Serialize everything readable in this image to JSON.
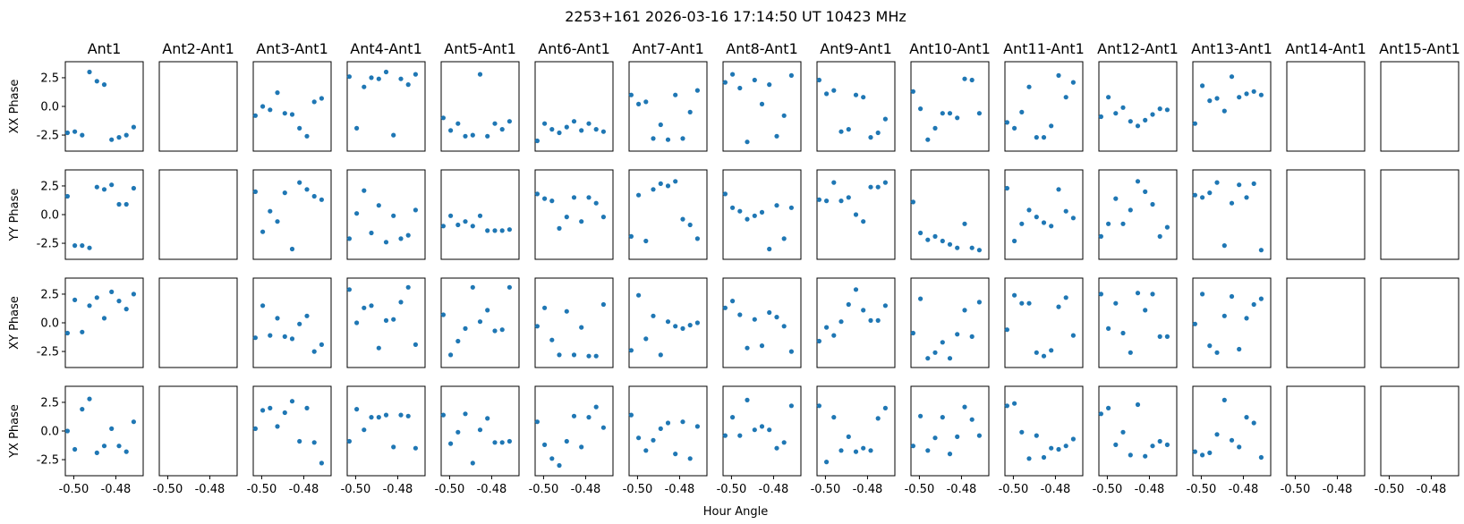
{
  "figure": {
    "title": "2253+161  2026-03-16 17:14:50 UT  10423 MHz",
    "xlabel": "Hour Angle"
  },
  "chart_data": {
    "type": "scatter",
    "title": "2253+161  2026-03-16 17:14:50 UT  10423 MHz",
    "xlabel": "Hour Angle",
    "xlim": [
      -0.504,
      -0.467
    ],
    "ylim": [
      -3.9,
      3.9
    ],
    "xticks": [
      -0.5,
      -0.48
    ],
    "xtick_labels": [
      "-0.50",
      "-0.48"
    ],
    "yticks": [
      2.5,
      0.0,
      -2.5
    ],
    "ytick_labels": [
      "2.5",
      "0.0",
      "-2.5"
    ],
    "x": [
      -0.503,
      -0.4995,
      -0.496,
      -0.4925,
      -0.489,
      -0.4855,
      -0.482,
      -0.4785,
      -0.475,
      -0.4715,
      -0.468
    ],
    "columns": [
      "Ant1",
      "Ant2-Ant1",
      "Ant3-Ant1",
      "Ant4-Ant1",
      "Ant5-Ant1",
      "Ant6-Ant1",
      "Ant7-Ant1",
      "Ant8-Ant1",
      "Ant9-Ant1",
      "Ant10-Ant1",
      "Ant11-Ant1",
      "Ant12-Ant1",
      "Ant13-Ant1",
      "Ant14-Ant1",
      "Ant15-Ant1"
    ],
    "rows": [
      "XX Phase",
      "YY Phase",
      "XY Phase",
      "YX Phase"
    ],
    "marker_color": "#1f77b4",
    "series": {
      "XX Phase": [
        [
          -2.3,
          -2.2,
          -2.5,
          3.0,
          2.2,
          1.9,
          -2.9,
          -2.7,
          -2.5,
          -1.8,
          null
        ],
        [],
        [
          -0.8,
          0.0,
          -0.3,
          1.2,
          -0.6,
          -0.7,
          -1.9,
          -2.6,
          0.4,
          0.7,
          null
        ],
        [
          2.6,
          -1.9,
          1.7,
          2.5,
          2.4,
          3.0,
          -2.5,
          2.4,
          1.9,
          2.8,
          null
        ],
        [
          -1.0,
          -2.1,
          -1.5,
          -2.6,
          -2.5,
          2.8,
          -2.6,
          -1.5,
          -2.0,
          -1.3,
          null
        ],
        [
          -3.0,
          -1.5,
          -2.0,
          -2.3,
          -1.8,
          -1.3,
          -2.1,
          -1.5,
          -2.0,
          -2.2,
          null
        ],
        [
          1.0,
          0.2,
          0.4,
          -2.8,
          -1.6,
          -2.9,
          1.0,
          -2.8,
          -0.5,
          1.4,
          null
        ],
        [
          2.1,
          2.8,
          1.6,
          -3.1,
          2.3,
          0.2,
          1.9,
          -2.6,
          -0.8,
          2.7,
          null
        ],
        [
          2.3,
          1.1,
          1.4,
          -2.2,
          -2.0,
          1.0,
          0.8,
          -2.7,
          -2.3,
          -1.1,
          null
        ],
        [
          1.3,
          -0.2,
          -2.9,
          -1.9,
          -0.6,
          -0.6,
          -1.0,
          2.4,
          2.3,
          -0.6,
          null
        ],
        [
          -1.4,
          -1.9,
          -0.5,
          1.7,
          -2.7,
          -2.7,
          -1.7,
          2.7,
          0.8,
          2.1,
          null
        ],
        [
          -0.9,
          0.8,
          -0.6,
          -0.1,
          -1.3,
          -1.7,
          -1.2,
          -0.7,
          -0.2,
          -0.3,
          null
        ],
        [
          -1.5,
          1.8,
          0.5,
          0.7,
          -0.4,
          2.6,
          0.8,
          1.1,
          1.3,
          1.0,
          null
        ],
        [],
        []
      ],
      "YY Phase": [
        [
          1.6,
          -2.7,
          -2.7,
          -2.9,
          2.4,
          2.2,
          2.6,
          0.9,
          0.9,
          2.3,
          null
        ],
        [],
        [
          2.0,
          -1.5,
          0.3,
          -0.6,
          1.9,
          -3.0,
          2.8,
          2.2,
          1.6,
          1.3,
          null
        ],
        [
          -2.1,
          0.1,
          2.1,
          -1.6,
          0.8,
          -2.4,
          -0.1,
          -2.1,
          -1.8,
          0.4,
          null
        ],
        [
          -1.0,
          -0.1,
          -0.9,
          -0.6,
          -1.0,
          -0.1,
          -1.4,
          -1.4,
          -1.4,
          -1.3,
          null
        ],
        [
          1.8,
          1.4,
          1.2,
          -1.2,
          -0.2,
          1.5,
          -0.6,
          1.5,
          1.0,
          -0.2,
          null
        ],
        [
          -1.9,
          1.7,
          -2.3,
          2.2,
          2.7,
          2.5,
          2.9,
          -0.4,
          -0.9,
          -2.1,
          null
        ],
        [
          1.8,
          0.6,
          0.3,
          -0.4,
          -0.1,
          0.2,
          -3.0,
          0.8,
          -2.1,
          0.6,
          null
        ],
        [
          1.3,
          1.2,
          2.8,
          1.2,
          1.5,
          0.0,
          -0.6,
          2.4,
          2.4,
          2.8,
          null
        ],
        [
          1.1,
          -1.6,
          -2.2,
          -1.9,
          -2.3,
          -2.6,
          -2.9,
          -0.8,
          -2.9,
          -3.1,
          null
        ],
        [
          2.3,
          -2.3,
          -0.8,
          0.4,
          -0.2,
          -0.7,
          -1.0,
          2.2,
          0.3,
          -0.3,
          null
        ],
        [
          -1.9,
          -0.8,
          1.4,
          -0.8,
          0.4,
          2.9,
          2.0,
          0.9,
          -1.9,
          -1.1,
          null
        ],
        [
          1.7,
          1.5,
          1.9,
          2.8,
          -2.7,
          1.0,
          2.6,
          1.5,
          2.7,
          -3.1,
          null
        ],
        [],
        []
      ],
      "XY Phase": [
        [
          -0.9,
          2.0,
          -0.8,
          1.5,
          2.2,
          0.4,
          2.7,
          1.9,
          1.2,
          2.5,
          null
        ],
        [],
        [
          -1.3,
          1.5,
          -1.1,
          0.4,
          -1.2,
          -1.4,
          -0.1,
          0.6,
          -2.5,
          -1.9,
          null
        ],
        [
          2.9,
          0.0,
          1.3,
          1.5,
          -2.2,
          0.2,
          0.3,
          1.8,
          3.1,
          -1.9,
          null
        ],
        [
          0.7,
          -2.8,
          -1.6,
          -0.5,
          3.1,
          0.1,
          1.1,
          -0.7,
          -0.6,
          3.1,
          null
        ],
        [
          -0.3,
          1.3,
          -1.5,
          -2.8,
          1.0,
          -2.8,
          -0.4,
          -2.9,
          -2.9,
          1.6,
          null
        ],
        [
          -2.4,
          2.4,
          -1.4,
          0.6,
          -2.8,
          0.1,
          -0.3,
          -0.5,
          -0.2,
          0.0,
          null
        ],
        [
          1.3,
          1.9,
          0.7,
          -2.2,
          0.3,
          -2.0,
          0.9,
          0.5,
          -0.3,
          -2.5,
          null
        ],
        [
          -1.6,
          -0.4,
          -1.1,
          0.1,
          1.6,
          2.9,
          1.1,
          0.2,
          0.2,
          1.5,
          null
        ],
        [
          -0.9,
          2.1,
          -3.1,
          -2.6,
          -1.7,
          -3.1,
          -1.0,
          1.1,
          -1.2,
          1.8,
          null
        ],
        [
          -0.6,
          2.4,
          1.7,
          1.7,
          -2.6,
          -2.9,
          -2.4,
          1.4,
          2.2,
          -1.1,
          null
        ],
        [
          2.5,
          -0.5,
          1.7,
          -0.9,
          -2.6,
          2.6,
          1.1,
          2.5,
          -1.2,
          -1.2,
          null
        ],
        [
          -0.1,
          2.5,
          -2.0,
          -2.6,
          0.6,
          2.3,
          -2.3,
          0.4,
          1.6,
          2.1,
          null
        ],
        [],
        []
      ],
      "YX Phase": [
        [
          0.0,
          -1.6,
          1.9,
          2.8,
          -1.9,
          -1.3,
          0.2,
          -1.3,
          -1.8,
          0.8,
          null
        ],
        [],
        [
          0.2,
          1.8,
          2.0,
          0.4,
          1.6,
          2.6,
          -0.9,
          2.0,
          -1.0,
          -2.8,
          null
        ],
        [
          -0.9,
          1.9,
          0.1,
          1.2,
          1.2,
          1.4,
          -1.4,
          1.4,
          1.3,
          -1.5,
          null
        ],
        [
          1.4,
          -1.1,
          -0.1,
          1.5,
          -2.8,
          0.1,
          1.1,
          -1.0,
          -1.0,
          -0.9,
          null
        ],
        [
          0.8,
          -1.2,
          -2.4,
          -3.0,
          -0.9,
          1.3,
          -1.4,
          1.2,
          2.1,
          0.3,
          null
        ],
        [
          1.4,
          -0.6,
          -1.7,
          -0.8,
          0.2,
          0.7,
          -2.0,
          0.8,
          -2.4,
          0.4,
          null
        ],
        [
          -0.4,
          1.2,
          -0.4,
          2.7,
          0.1,
          0.4,
          0.1,
          -1.5,
          -1.0,
          2.2,
          null
        ],
        [
          2.2,
          -2.7,
          1.2,
          -1.7,
          -0.5,
          -1.8,
          -1.5,
          -1.7,
          1.1,
          2.0,
          null
        ],
        [
          -1.3,
          1.3,
          -1.7,
          -0.6,
          1.2,
          -2.0,
          -0.5,
          2.1,
          1.0,
          -0.4,
          null
        ],
        [
          2.2,
          2.4,
          -0.1,
          -2.4,
          -0.4,
          -2.3,
          -1.5,
          -1.6,
          -1.3,
          -0.7,
          null
        ],
        [
          1.5,
          2.0,
          -1.2,
          -0.1,
          -2.1,
          2.3,
          -2.2,
          -1.3,
          -0.9,
          -1.2,
          null
        ],
        [
          -1.8,
          -2.1,
          -1.9,
          -0.3,
          2.7,
          -0.8,
          -1.4,
          1.2,
          0.7,
          -2.3,
          null
        ],
        [],
        []
      ]
    }
  }
}
